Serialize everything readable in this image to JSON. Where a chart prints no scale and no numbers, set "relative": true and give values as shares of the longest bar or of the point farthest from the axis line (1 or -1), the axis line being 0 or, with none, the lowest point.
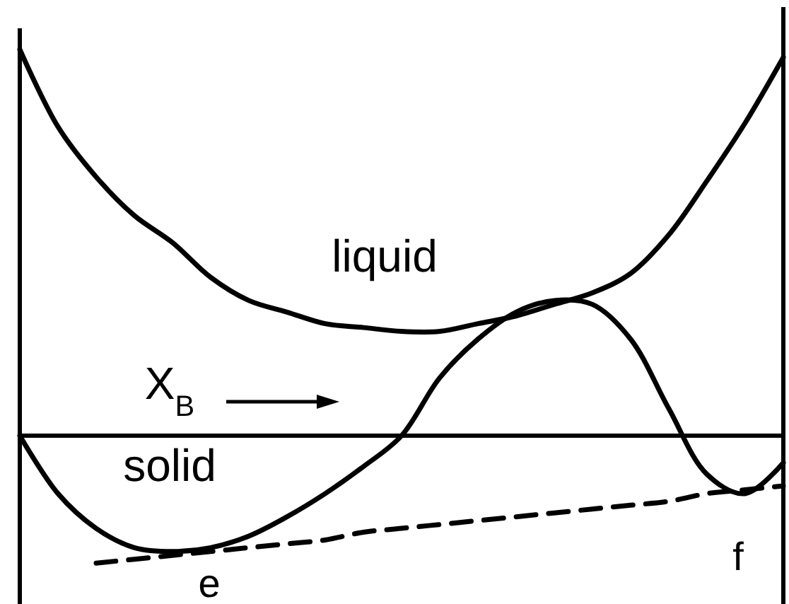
{
  "chart_data": {
    "type": "line",
    "relative": true,
    "categories": [
      null,
      null,
      null,
      null,
      null,
      null,
      null,
      null,
      null,
      null,
      null,
      null,
      null,
      null,
      null,
      null,
      null,
      null,
      null,
      null,
      null
    ],
    "series": [
      {
        "name": "liquid",
        "color": "#000000",
        "line_style": "solid",
        "values": [
          1.0,
          0.8,
          0.67,
          0.57,
          0.5,
          0.41,
          0.35,
          0.32,
          0.29,
          0.28,
          0.27,
          0.27,
          0.29,
          0.31,
          0.34,
          0.37,
          0.42,
          0.52,
          0.66,
          0.81,
          0.98
        ]
      },
      {
        "name": "solid",
        "color": "#000000",
        "line_style": "solid",
        "values": [
          0,
          -0.15,
          -0.24,
          -0.29,
          -0.3,
          -0.29,
          -0.26,
          -0.21,
          -0.15,
          -0.08,
          0,
          0.15,
          0.25,
          0.32,
          0.35,
          0.34,
          0.25,
          0.07,
          -0.1,
          -0.15,
          -0.07
        ]
      },
      {
        "color": "#000000",
        "line_style": "dashed",
        "values": [
          null,
          null,
          -0.33,
          -0.32,
          -0.31,
          -0.3,
          -0.29,
          -0.28,
          -0.27,
          -0.25,
          -0.24,
          -0.23,
          -0.22,
          -0.21,
          -0.2,
          -0.19,
          -0.18,
          -0.17,
          -0.15,
          -0.14,
          -0.13
        ]
      }
    ],
    "annotations": [
      "X$_{B}$",
      "e",
      "f"
    ]
  }
}
